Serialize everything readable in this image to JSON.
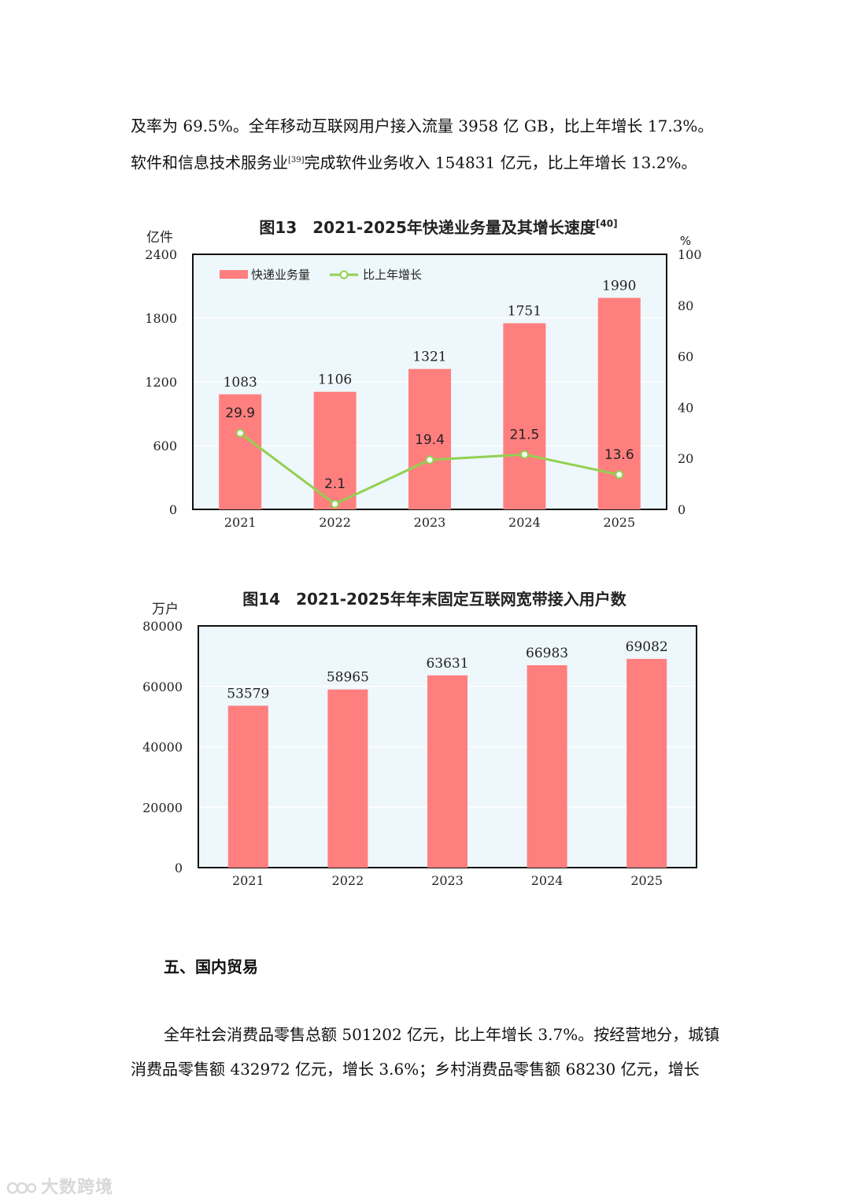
{
  "text": {
    "para1_line1": "及率为 69.5%。全年移动互联网用户接入流量 3958 亿 GB，比上年增长 17.3%。",
    "para1_line2_a": "软件和信息技术服务业",
    "para1_note": "[39]",
    "para1_line2_b": "完成软件业务收入 154831 亿元，比上年增长 13.2%。",
    "section_heading": "五、国内贸易",
    "para2": "全年社会消费品零售总额 501202 亿元，比上年增长 3.7%。按经营地分，城镇消费品零售额 432972 亿元，增长 3.6%；乡村消费品零售额 68230 亿元，增长",
    "watermark": "大数跨境"
  },
  "colors": {
    "bar": "#ff7f7f",
    "line": "#92d050",
    "plot_bg": "#eef7fb",
    "grid": "#ffffff"
  },
  "chart_data": [
    {
      "type": "bar",
      "title": "图13　2021-2025年快递业务量及其增长速度",
      "title_note": "[40]",
      "ylabel": "亿件",
      "y2label": "%",
      "ylim": [
        0,
        2400
      ],
      "y2lim": [
        0,
        100
      ],
      "yticks": [
        0,
        600,
        1200,
        1800,
        2400
      ],
      "y2ticks": [
        0,
        20,
        40,
        60,
        80,
        100
      ],
      "categories": [
        "2021",
        "2022",
        "2023",
        "2024",
        "2025"
      ],
      "series": [
        {
          "name": "快递业务量",
          "type": "bar",
          "values": [
            1083,
            1106,
            1321,
            1751,
            1990
          ]
        },
        {
          "name": "比上年增长",
          "type": "line",
          "axis": "right",
          "values": [
            29.9,
            2.1,
            19.4,
            21.5,
            13.6
          ]
        }
      ],
      "legend": "top-left",
      "grid": true
    },
    {
      "type": "bar",
      "title": "图14　2021-2025年年末固定互联网宽带接入用户数",
      "ylabel": "万户",
      "ylim": [
        0,
        80000
      ],
      "yticks": [
        0,
        20000,
        40000,
        60000,
        80000
      ],
      "categories": [
        "2021",
        "2022",
        "2023",
        "2024",
        "2025"
      ],
      "series": [
        {
          "type": "bar",
          "values": [
            53579,
            58965,
            63631,
            66983,
            69082
          ]
        }
      ],
      "grid": true
    }
  ]
}
